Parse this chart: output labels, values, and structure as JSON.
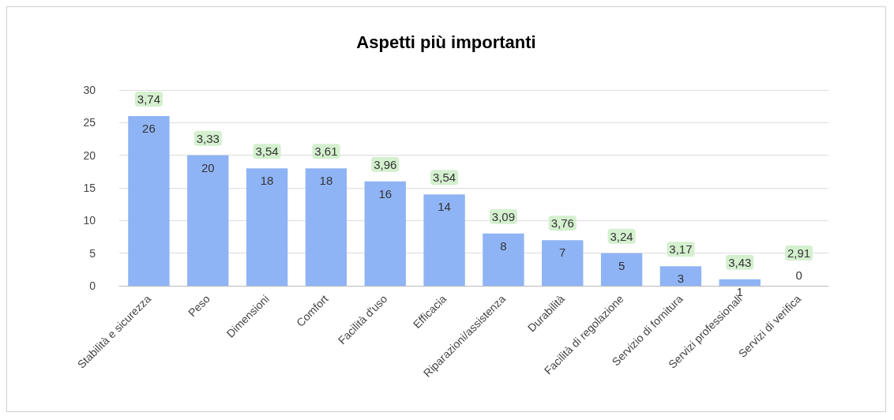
{
  "chart_data": {
    "type": "bar",
    "title": "Aspetti più importanti",
    "categories": [
      "Stabilità e sicurezza",
      "Peso",
      "Dimensioni",
      "Comfort",
      "Facilità d'uso",
      "Efficacia",
      "Riparazioni/assistenza",
      "Durabilità",
      "Facilità di regolazione",
      "Servizio di fornitura",
      "Servizi professionali",
      "Servizi di verifica"
    ],
    "values": [
      26,
      20,
      18,
      18,
      16,
      14,
      8,
      7,
      5,
      3,
      1,
      0
    ],
    "color": "#8fb4f5",
    "ylim": [
      0,
      30
    ],
    "yticks": [
      0,
      5,
      10,
      15,
      20,
      25,
      30
    ],
    "grid": "y",
    "data_labels": true,
    "annotations": [
      {
        "text": "3,74",
        "x": "Stabilità e sicurezza",
        "y": 26
      },
      {
        "text": "3,33",
        "x": "Peso",
        "y": 20
      },
      {
        "text": "3,54",
        "x": "Dimensioni",
        "y": 18
      },
      {
        "text": "3,61",
        "x": "Comfort",
        "y": 18
      },
      {
        "text": "3,96",
        "x": "Facilità d'uso",
        "y": 16
      },
      {
        "text": "3,54",
        "x": "Efficacia",
        "y": 14
      },
      {
        "text": "3,09",
        "x": "Riparazioni/assistenza",
        "y": 8
      },
      {
        "text": "3,76",
        "x": "Durabilità",
        "y": 7
      },
      {
        "text": "3,24",
        "x": "Facilità di regolazione",
        "y": 5
      },
      {
        "text": "3,17",
        "x": "Servizio di fornitura",
        "y": 3
      },
      {
        "text": "3,43",
        "x": "Servizi professionali",
        "y": 1
      },
      {
        "text": "2,91",
        "x": "Servizi di verifica",
        "y": 0
      }
    ]
  }
}
